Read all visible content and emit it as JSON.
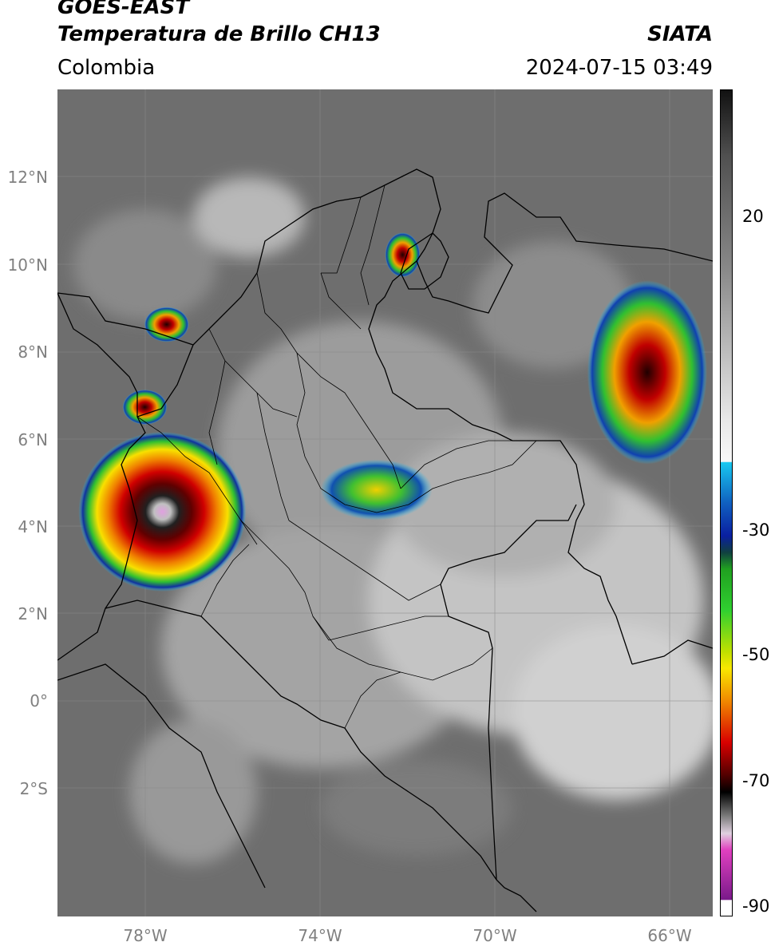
{
  "header": {
    "satellite": "GOES-EAST",
    "product": "Temperatura de Brillo CH13",
    "region": "Colombia",
    "agency": "SIATA",
    "datetime": "2024-07-15 03:49"
  },
  "map": {
    "lat_labels": [
      "12°N",
      "10°N",
      "8°N",
      "6°N",
      "4°N",
      "2°N",
      "0°",
      "2°S"
    ],
    "lon_labels": [
      "78°W",
      "74°W",
      "70°W",
      "66°W"
    ],
    "extent": {
      "lon_min": -80.0,
      "lon_max": -65.0,
      "lat_min": -5.0,
      "lat_max": 14.0
    }
  },
  "colorbar": {
    "units_hint": "",
    "tick_labels": [
      "20",
      "-30",
      "-50",
      "-70",
      "-90"
    ],
    "range": [
      -92,
      36
    ],
    "colors": {
      "warm_top": "#111111",
      "gray": "#b8b8b8",
      "cyan": "#18c8f0",
      "blue": "#0a1fa0",
      "green": "#20c020",
      "yellow": "#f8e800",
      "orange": "#f08800",
      "red": "#d80000",
      "dark_red": "#500000",
      "black": "#000000",
      "pink": "#e040c0",
      "purple": "#7a1a8a"
    }
  },
  "storms": [
    {
      "name": "pacific-mcs",
      "lon": -77.6,
      "lat": 4.3,
      "min_bt": -85
    },
    {
      "name": "uraba-cell",
      "lon": -77.5,
      "lat": 8.6,
      "min_bt": -70
    },
    {
      "name": "choco-cell",
      "lon": -78.0,
      "lat": 6.7,
      "min_bt": -70
    },
    {
      "name": "guajira-cell",
      "lon": -72.1,
      "lat": 10.2,
      "min_bt": -65
    },
    {
      "name": "llanos-cluster",
      "lon": -72.7,
      "lat": 4.8,
      "min_bt": -55
    },
    {
      "name": "venezuela-cluster",
      "lon": -66.5,
      "lat": 7.5,
      "min_bt": -65
    }
  ]
}
